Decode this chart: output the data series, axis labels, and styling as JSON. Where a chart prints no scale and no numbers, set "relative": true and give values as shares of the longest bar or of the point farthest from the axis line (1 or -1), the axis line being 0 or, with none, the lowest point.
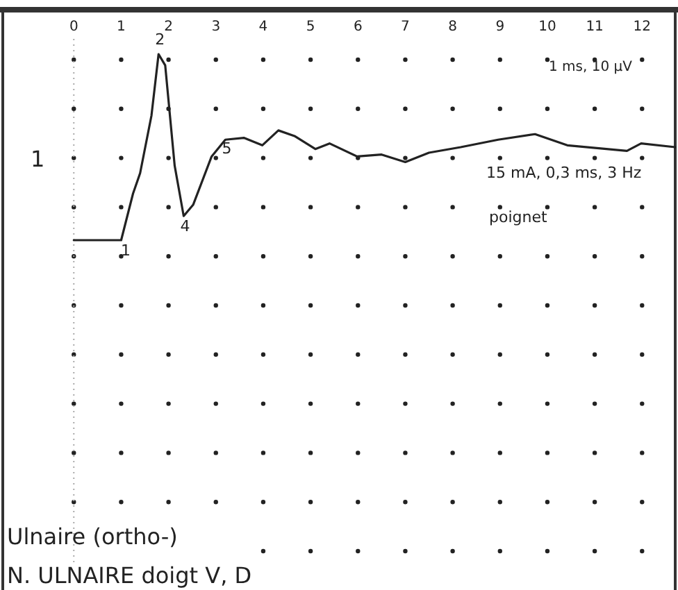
{
  "chart_data": {
    "type": "line",
    "relative": true,
    "xlim": [
      -1.5,
      12.7
    ],
    "xticks": [
      0,
      1,
      2,
      3,
      4,
      5,
      6,
      7,
      8,
      9,
      10,
      11,
      12
    ],
    "grid": "x",
    "marker": "none",
    "line_style": "solid",
    "ref_lines": [
      {
        "axis": "x",
        "value": 0,
        "line_style": "dotted",
        "color": "#aaaaaa"
      }
    ],
    "series": [
      {
        "name": "1",
        "color": "#222222",
        "x": [
          0,
          1.0,
          1.25,
          1.4,
          1.64,
          1.79,
          1.93,
          2.13,
          2.32,
          2.52,
          2.91,
          3.2,
          3.59,
          3.98,
          4.32,
          4.66,
          5.1,
          5.4,
          5.98,
          6.5,
          7.0,
          7.5,
          8.17,
          8.96,
          9.74,
          10.42,
          11.68,
          11.98,
          12.7
        ],
        "values": [
          0,
          0,
          0.25,
          0.36,
          0.67,
          1.0,
          0.94,
          0.4,
          0.13,
          0.19,
          0.45,
          0.54,
          0.55,
          0.51,
          0.59,
          0.56,
          0.49,
          0.52,
          0.45,
          0.46,
          0.42,
          0.47,
          0.5,
          0.54,
          0.57,
          0.51,
          0.48,
          0.52,
          0.5
        ]
      }
    ],
    "annotations": [
      "1",
      {
        "text": "2",
        "x": 1.79,
        "y": 1.0
      },
      {
        "text": "4",
        "x": 2.32,
        "y": 0.13
      },
      {
        "text": "5",
        "x": 3.2,
        "y": 0.54
      },
      "1 ms, 10 µV",
      "15 mA, 0,3 ms, 3 Hz",
      "poignet",
      "Ulnaire (ortho-)",
      "N. ULNAIRE doigt V, D"
    ]
  }
}
